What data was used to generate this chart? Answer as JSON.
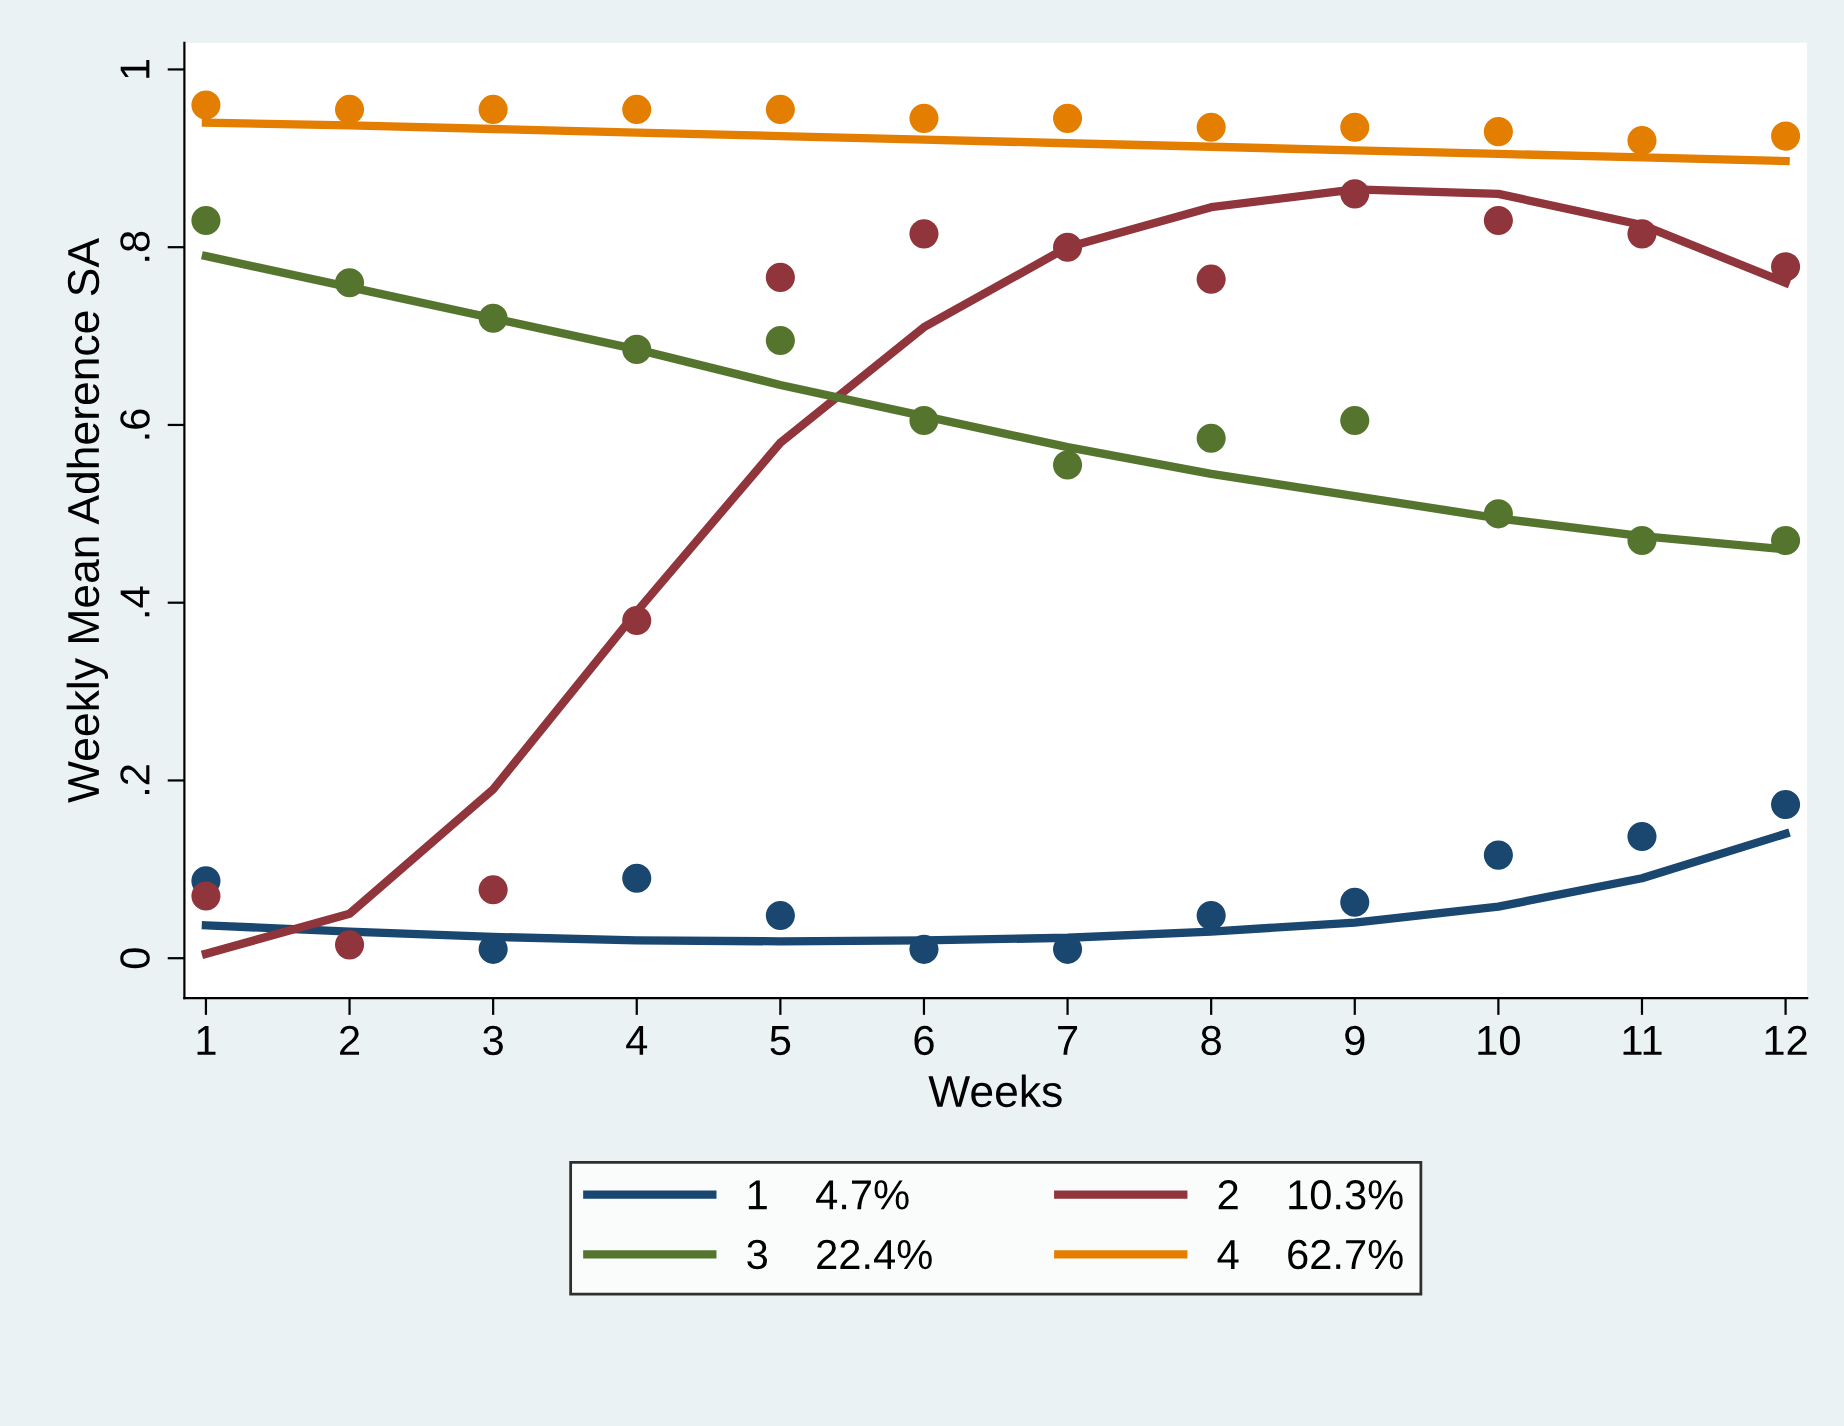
{
  "chart_data": {
    "type": "line",
    "xlabel": "Weeks",
    "ylabel": "Weekly Mean Adherence SA",
    "x": [
      1,
      2,
      3,
      4,
      5,
      6,
      7,
      8,
      9,
      10,
      11,
      12
    ],
    "xlim": [
      0.85,
      12.15
    ],
    "xticks": [
      1,
      2,
      3,
      4,
      5,
      6,
      7,
      8,
      9,
      10,
      11,
      12
    ],
    "ylim": [
      -0.045,
      1.03
    ],
    "yticks": [
      {
        "value": 0,
        "label": "0"
      },
      {
        "value": 0.2,
        "label": ".2"
      },
      {
        "value": 0.4,
        "label": ".4"
      },
      {
        "value": 0.6,
        "label": ".6"
      },
      {
        "value": 0.8,
        "label": ".8"
      },
      {
        "value": 1,
        "label": "1"
      }
    ],
    "grid": false,
    "legend": "bottom",
    "marker": "none",
    "line_style": "solid",
    "series": [
      {
        "type": "scatter",
        "marker": "circle",
        "color": "#1a476f",
        "values": [
          0.087,
          null,
          0.01,
          0.09,
          0.048,
          0.01,
          0.01,
          0.048,
          0.063,
          0.116,
          0.137,
          0.173
        ]
      },
      {
        "type": "scatter",
        "marker": "circle",
        "color": "#90353b",
        "values": [
          0.07,
          0.015,
          0.077,
          0.38,
          0.766,
          0.815,
          0.8,
          0.764,
          0.86,
          0.83,
          0.815,
          0.778
        ]
      },
      {
        "type": "scatter",
        "marker": "circle",
        "color": "#55752f",
        "values": [
          0.83,
          0.76,
          0.72,
          0.685,
          0.695,
          0.605,
          0.555,
          0.585,
          0.605,
          0.5,
          0.47,
          0.47
        ]
      },
      {
        "type": "scatter",
        "marker": "circle",
        "color": "#e37e00",
        "values": [
          0.96,
          0.955,
          0.955,
          0.955,
          0.955,
          0.945,
          0.945,
          0.935,
          0.935,
          0.93,
          0.92,
          0.925
        ]
      },
      {
        "name": "1    4.7%",
        "color": "#1a476f",
        "values": [
          0.037,
          0.03,
          0.024,
          0.02,
          0.019,
          0.02,
          0.023,
          0.03,
          0.04,
          0.058,
          0.09,
          0.14
        ]
      },
      {
        "name": "2    10.3%",
        "color": "#90353b",
        "values": [
          0.005,
          0.05,
          0.19,
          0.39,
          0.58,
          0.71,
          0.8,
          0.845,
          0.865,
          0.86,
          0.825,
          0.76
        ]
      },
      {
        "name": "3    22.4%",
        "color": "#55752f",
        "values": [
          0.79,
          0.755,
          0.72,
          0.685,
          0.645,
          0.61,
          0.575,
          0.545,
          0.52,
          0.495,
          0.475,
          0.46
        ]
      },
      {
        "name": "4    62.7%",
        "color": "#e37e00",
        "values": [
          0.94,
          0.937,
          0.933,
          0.929,
          0.925,
          0.921,
          0.917,
          0.913,
          0.909,
          0.905,
          0.901,
          0.897
        ]
      }
    ]
  }
}
